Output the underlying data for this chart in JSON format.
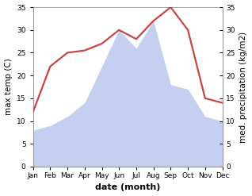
{
  "months": [
    "Jan",
    "Feb",
    "Mar",
    "Apr",
    "May",
    "Jun",
    "Jul",
    "Aug",
    "Sep",
    "Oct",
    "Nov",
    "Dec"
  ],
  "temperature": [
    12,
    22,
    25,
    25.5,
    27,
    30,
    28,
    32,
    35,
    30,
    15,
    14
  ],
  "precipitation": [
    8,
    9,
    11,
    14,
    22,
    30,
    26,
    32,
    18,
    17,
    11,
    10
  ],
  "temp_color": "#c94444",
  "precip_color": "#c5d0f0",
  "ylim": [
    0,
    35
  ],
  "xlabel": "date (month)",
  "ylabel_left": "max temp (C)",
  "ylabel_right": "med. precipitation (kg/m2)",
  "bg_color": "#ffffff",
  "spine_color": "#999999",
  "yticks": [
    0,
    5,
    10,
    15,
    20,
    25,
    30,
    35
  ],
  "label_fontsize": 7.5,
  "tick_fontsize": 6.5,
  "xlabel_fontsize": 8
}
